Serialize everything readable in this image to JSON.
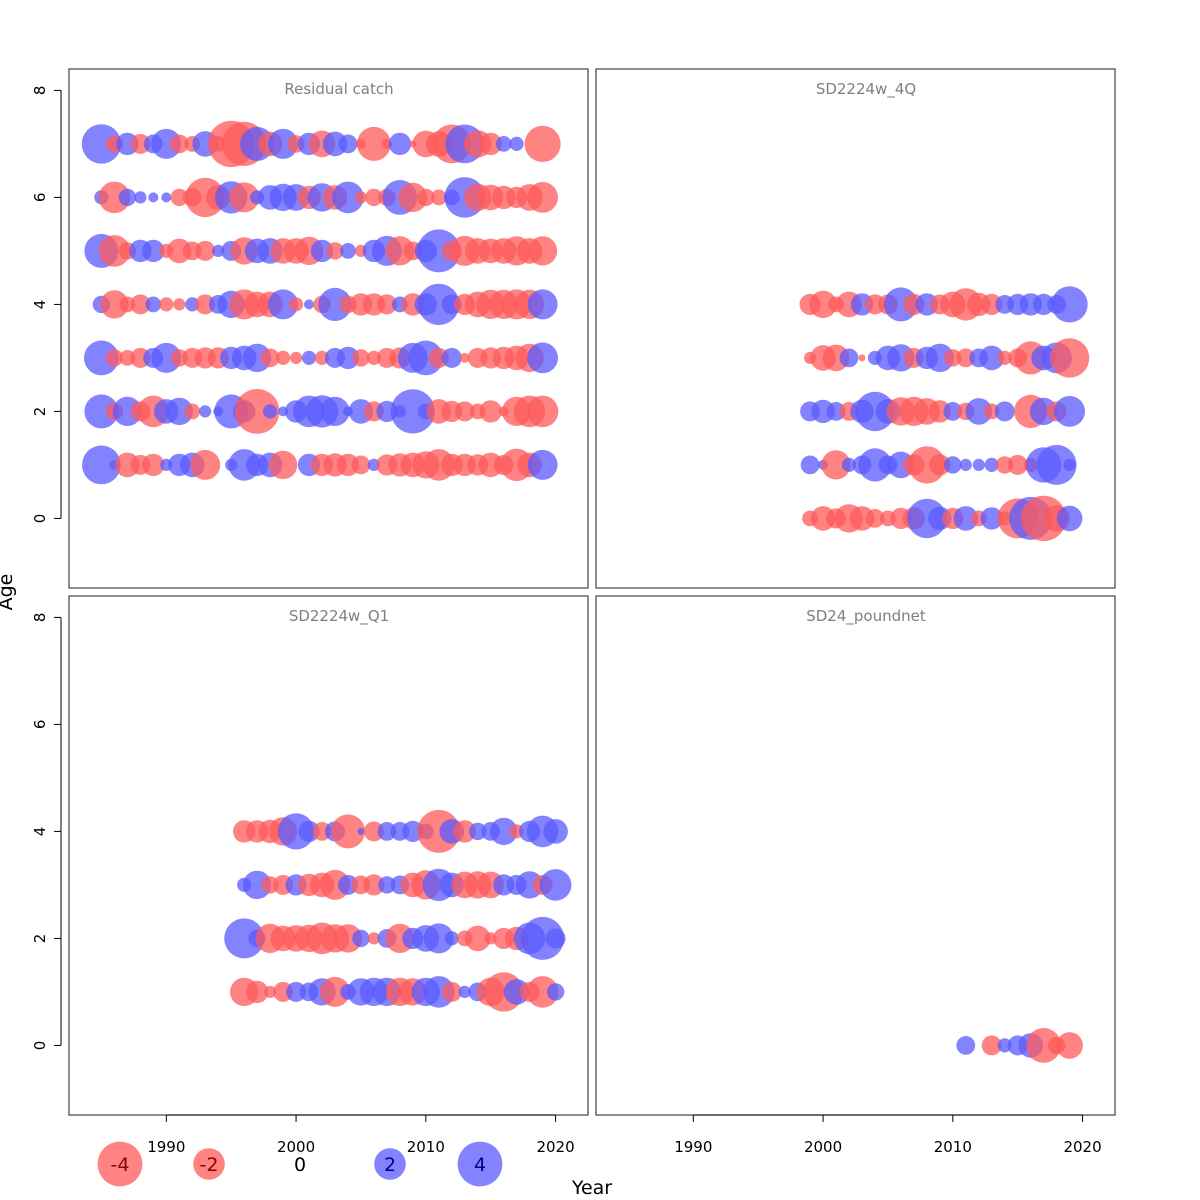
{
  "chart_data": {
    "type": "scatter",
    "xlabel": "Year",
    "ylabel": "Age",
    "xlim": [
      1982.5,
      2022.5
    ],
    "ylim": [
      -1.3,
      8.4
    ],
    "x_ticks": [
      "1990",
      "2000",
      "2010",
      "2020"
    ],
    "y_ticks": [
      "0",
      "2",
      "4",
      "6",
      "8"
    ],
    "colors": {
      "negative": "#ff5a5a",
      "positive": "#5a5aff"
    },
    "legend": [
      {
        "label": "-4",
        "value": -4
      },
      {
        "label": "-2",
        "value": -2
      },
      {
        "label": "0",
        "value": 0
      },
      {
        "label": "2",
        "value": 2
      },
      {
        "label": "4",
        "value": 4
      }
    ],
    "panels": [
      {
        "title": "Residual catch",
        "ages": [
          1,
          2,
          3,
          4,
          5,
          6,
          7
        ],
        "years": [
          1985,
          1986,
          1987,
          1988,
          1989,
          1990,
          1991,
          1992,
          1993,
          1994,
          1995,
          1996,
          1997,
          1998,
          1999,
          2000,
          2001,
          2002,
          2003,
          2004,
          2005,
          2006,
          2007,
          2008,
          2009,
          2010,
          2011,
          2012,
          2013,
          2014,
          2015,
          2016,
          2017,
          2018,
          2019
        ],
        "residuals": {
          "1": [
            3.0,
            0.2,
            -1.2,
            -0.8,
            -1.0,
            0.3,
            1.0,
            1.2,
            -1.8,
            0.0,
            0.3,
            2.0,
            1.0,
            1.2,
            -1.6,
            0.0,
            1.0,
            -1.0,
            -1.1,
            -1.0,
            -0.7,
            0.3,
            -0.9,
            -1.1,
            -1.2,
            -1.5,
            -2.0,
            -1.0,
            -1.0,
            -0.9,
            -1.2,
            -0.8,
            -2.1,
            -1.2,
            1.8
          ],
          "2": [
            2.3,
            -0.6,
            1.7,
            -0.8,
            -2.0,
            1.2,
            1.5,
            -0.5,
            0.3,
            0.2,
            2.3,
            1.0,
            -4.0,
            0.4,
            0.2,
            1.0,
            2.0,
            2.1,
            1.7,
            0.2,
            1.2,
            -0.8,
            0.9,
            0.3,
            3.9,
            0.5,
            -1.2,
            -0.9,
            -0.8,
            -0.5,
            -1.0,
            -0.2,
            -1.7,
            -2.0,
            -2.0
          ],
          "3": [
            2.4,
            -0.6,
            -0.5,
            -0.8,
            0.8,
            1.8,
            -0.6,
            -0.8,
            -0.9,
            -0.9,
            1.0,
            1.2,
            1.6,
            -0.7,
            -0.4,
            -0.3,
            0.4,
            -0.4,
            0.8,
            1.0,
            -0.6,
            -0.4,
            -0.8,
            -0.9,
            1.8,
            2.4,
            -0.8,
            0.8,
            -0.2,
            -0.8,
            -0.9,
            -1.0,
            -1.2,
            -1.6,
            1.9
          ],
          "4": [
            0.6,
            -1.6,
            -0.5,
            -0.8,
            0.5,
            -0.4,
            -0.3,
            0.4,
            -0.8,
            0.7,
            1.5,
            -1.8,
            -1.3,
            -1.3,
            1.8,
            -0.4,
            0.2,
            -0.6,
            2.2,
            -0.6,
            -1.0,
            -1.0,
            -0.8,
            0.5,
            -1.0,
            1.0,
            3.4,
            0.8,
            -0.9,
            -1.3,
            -1.7,
            -1.7,
            -1.8,
            -1.7,
            1.8
          ],
          "5": [
            2.3,
            -2.0,
            -0.6,
            1.0,
            1.0,
            -0.4,
            -1.2,
            -0.7,
            -0.8,
            0.3,
            0.8,
            -1.5,
            1.2,
            1.3,
            -1.3,
            -1.3,
            -1.6,
            1.0,
            -0.6,
            0.5,
            -0.3,
            1.0,
            1.8,
            -1.7,
            -0.7,
            1.0,
            3.7,
            -0.8,
            -1.8,
            -1.3,
            -1.2,
            -1.3,
            -1.7,
            -1.3,
            -1.7
          ],
          "6": [
            0.4,
            -2.0,
            0.6,
            0.3,
            0.2,
            0.2,
            -0.6,
            -0.7,
            -3.1,
            -1.2,
            2.1,
            -1.8,
            0.4,
            1.2,
            1.5,
            1.4,
            -1.1,
            1.6,
            -1.2,
            2.0,
            -0.3,
            -0.6,
            -0.6,
            2.4,
            -1.7,
            -0.6,
            -0.5,
            0.5,
            3.3,
            -1.5,
            -1.3,
            -1.1,
            -0.9,
            -1.4,
            -1.9
          ],
          "7": [
            3.1,
            -0.6,
            1.0,
            -0.8,
            0.7,
            1.8,
            -0.7,
            -0.5,
            1.3,
            -0.5,
            -4.3,
            -3.9,
            2.3,
            -1.2,
            1.8,
            -0.6,
            1.0,
            -1.4,
            1.2,
            0.7,
            -0.2,
            -2.3,
            -0.2,
            1.0,
            -0.1,
            -1.4,
            -1.3,
            -3.0,
            3.0,
            -1.5,
            -1.0,
            0.5,
            0.4,
            0.0,
            -2.6
          ]
        }
      },
      {
        "title": "SD2224w_4Q",
        "ages": [
          0,
          1,
          2,
          3,
          4
        ],
        "years": [
          1999,
          2000,
          2001,
          2002,
          2003,
          2004,
          2005,
          2006,
          2007,
          2008,
          2009,
          2010,
          2011,
          2012,
          2013,
          2014,
          2015,
          2016,
          2017,
          2018,
          2019
        ],
        "residuals": {
          "0": [
            -0.5,
            -1.2,
            -0.8,
            -1.6,
            -1.2,
            -0.7,
            -0.5,
            -0.9,
            -1.0,
            3.1,
            1.1,
            -0.9,
            1.2,
            -0.5,
            1.0,
            -0.4,
            -3.2,
            3.7,
            -4.1,
            -1.4,
            1.3
          ],
          "1": [
            0.7,
            0.2,
            -1.7,
            0.4,
            0.7,
            2.2,
            0.7,
            1.4,
            -0.9,
            -2.8,
            -0.9,
            0.6,
            0.3,
            0.3,
            0.4,
            -0.6,
            -0.8,
            -0.4,
            2.5,
            3.2,
            0.3
          ],
          "2": [
            0.8,
            1.1,
            0.7,
            -0.7,
            1.1,
            3.1,
            1.2,
            -1.6,
            -1.7,
            -1.4,
            -1.0,
            0.7,
            -0.6,
            1.4,
            -0.5,
            0.8,
            0.0,
            -2.2,
            1.5,
            -0.8,
            1.9
          ],
          "3": [
            -0.3,
            -1.3,
            -1.4,
            0.7,
            -0.1,
            0.4,
            1.2,
            1.5,
            -0.8,
            1.0,
            1.6,
            -0.6,
            -0.7,
            0.7,
            1.2,
            -0.4,
            -0.7,
            -2.2,
            1.2,
            1.9,
            -3.1
          ],
          "4": [
            -0.9,
            -1.5,
            -0.5,
            -1.3,
            1.0,
            -0.8,
            -0.8,
            2.3,
            -0.9,
            1.0,
            -0.8,
            -1.3,
            -2.1,
            -1.1,
            -0.9,
            0.7,
            0.9,
            1.0,
            0.9,
            0.7,
            2.6
          ]
        }
      },
      {
        "title": "SD2224w_Q1",
        "ages": [
          1,
          2,
          3,
          4
        ],
        "years": [
          1996,
          1997,
          1998,
          1999,
          2000,
          2001,
          2002,
          2003,
          2004,
          2005,
          2006,
          2007,
          2008,
          2009,
          2010,
          2011,
          2012,
          2013,
          2014,
          2015,
          2016,
          2017,
          2018,
          2019,
          2020
        ],
        "residuals": {
          "1": [
            -1.6,
            -1.0,
            -0.3,
            -0.8,
            0.8,
            0.7,
            1.5,
            -1.8,
            0.5,
            1.5,
            1.6,
            1.6,
            -1.6,
            -1.5,
            1.6,
            2.0,
            -0.8,
            0.3,
            0.7,
            -1.6,
            -3.1,
            1.3,
            -0.8,
            -2.0,
            0.6
          ],
          "2": [
            3.2,
            0.6,
            -1.7,
            -1.3,
            -1.4,
            -1.5,
            -2.0,
            -1.6,
            -1.6,
            0.6,
            -0.3,
            0.7,
            -1.7,
            0.9,
            1.4,
            1.8,
            0.4,
            -0.5,
            -1.3,
            -0.3,
            -0.9,
            -1.1,
            2.0,
            3.7,
            0.8
          ],
          "3": [
            0.4,
            1.6,
            -0.6,
            -0.8,
            0.9,
            -1.0,
            -1.2,
            -1.8,
            0.8,
            -0.7,
            -0.9,
            0.6,
            0.7,
            -1.2,
            -1.7,
            2.1,
            1.2,
            -1.4,
            -1.5,
            -1.4,
            0.9,
            0.8,
            1.5,
            -0.8,
            2.0
          ],
          "4": [
            -1.0,
            -1.0,
            -1.1,
            -1.6,
            2.6,
            0.9,
            -0.7,
            0.8,
            -2.3,
            0.1,
            -0.8,
            0.7,
            0.7,
            0.9,
            0.5,
            -3.7,
            1.2,
            -1.0,
            0.6,
            0.7,
            1.5,
            -0.4,
            0.9,
            2.0,
            1.2
          ]
        }
      },
      {
        "title": "SD24_poundnet",
        "ages": [
          0
        ],
        "years": [
          2011,
          2012,
          2013,
          2014,
          2015,
          2016,
          2017,
          2018,
          2019
        ],
        "residuals": {
          "0": [
            0.7,
            0.0,
            -0.8,
            0.4,
            0.8,
            1.2,
            -2.4,
            -0.6,
            -1.4
          ]
        }
      }
    ]
  }
}
